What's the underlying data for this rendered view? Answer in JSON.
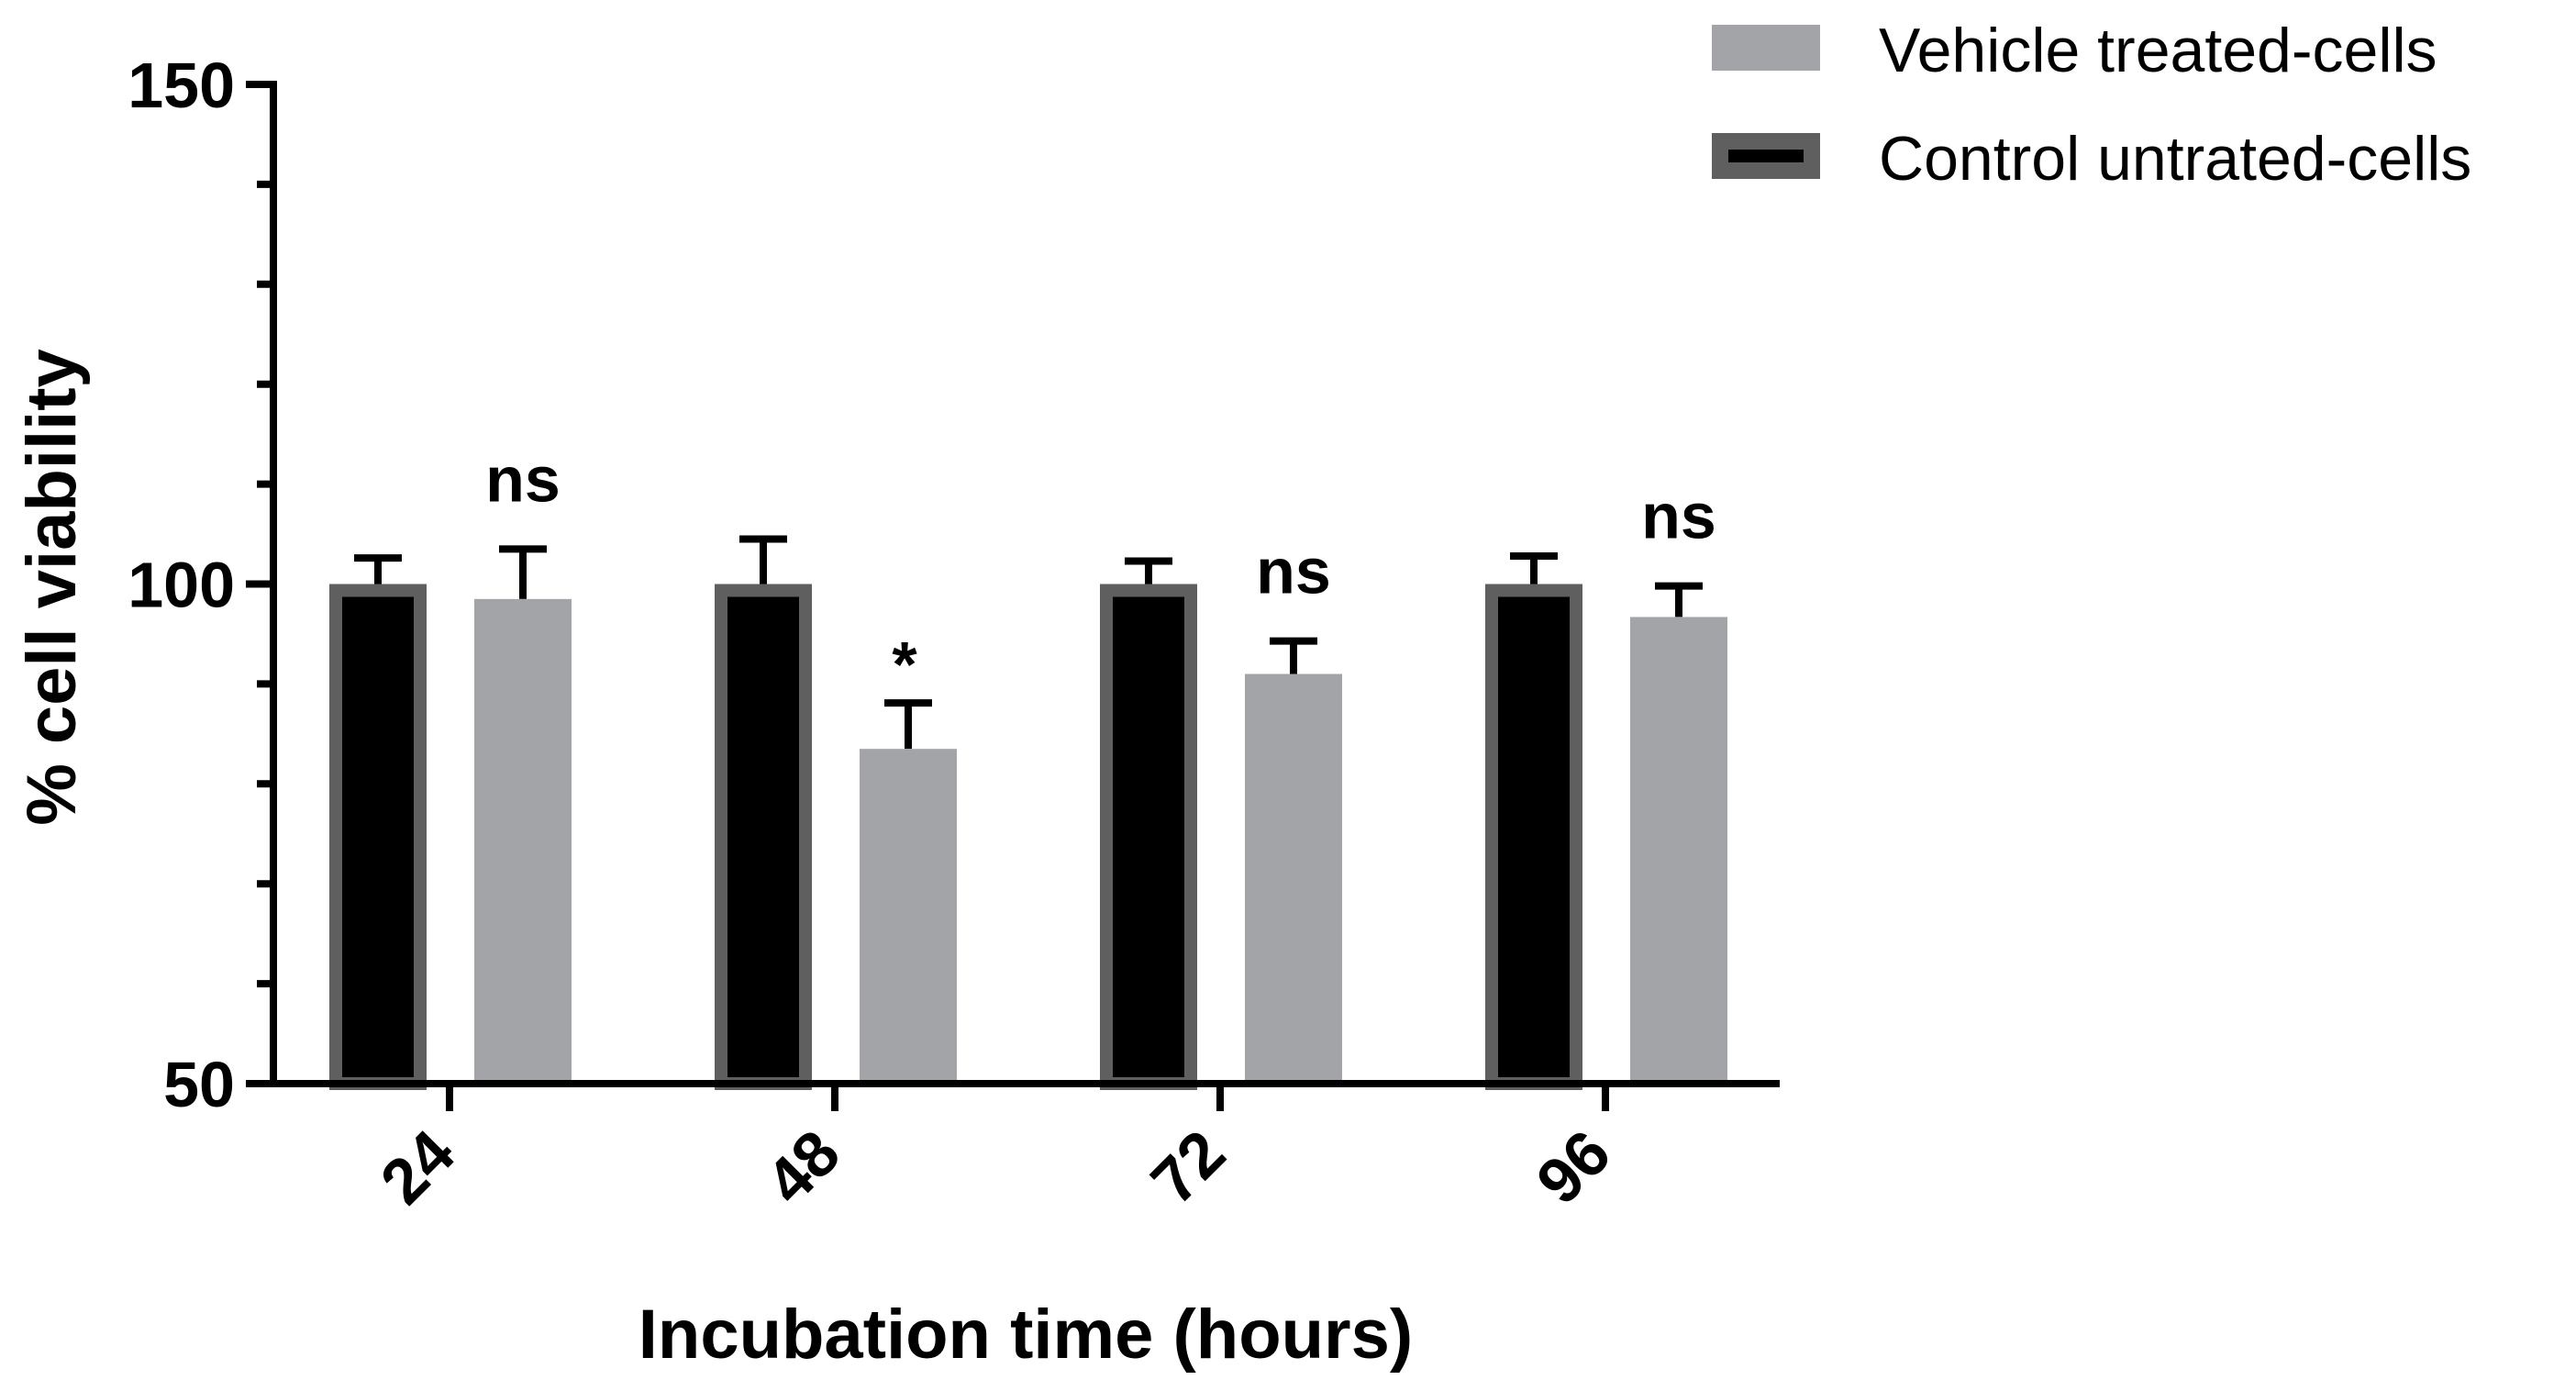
{
  "chart_data": {
    "type": "bar",
    "title": "",
    "xlabel": "Incubation time (hours)",
    "ylabel": "% cell viability",
    "ylim": [
      50,
      150
    ],
    "yticks": [
      "50",
      "100",
      "150"
    ],
    "categories": [
      "24",
      "48",
      "72",
      "96"
    ],
    "series": [
      {
        "name": "Control untrated-cells",
        "values": [
          100,
          100,
          100,
          100
        ],
        "errors": [
          2.6,
          4.5,
          2.3,
          2.8
        ],
        "fill": "#000000",
        "edge": "#5f5f60"
      },
      {
        "name": "Vehicle treated-cells",
        "values": [
          98.5,
          83.5,
          91,
          96.7
        ],
        "errors": [
          5,
          4.6,
          3.3,
          3.1
        ],
        "fill": "#a3a4a8"
      }
    ],
    "annotations": [
      "ns",
      "*",
      "ns",
      "ns"
    ],
    "legend": [
      "Vehicle treated-cells",
      "Control untrated-cells"
    ],
    "legend_position": "top-right",
    "grid": false
  }
}
